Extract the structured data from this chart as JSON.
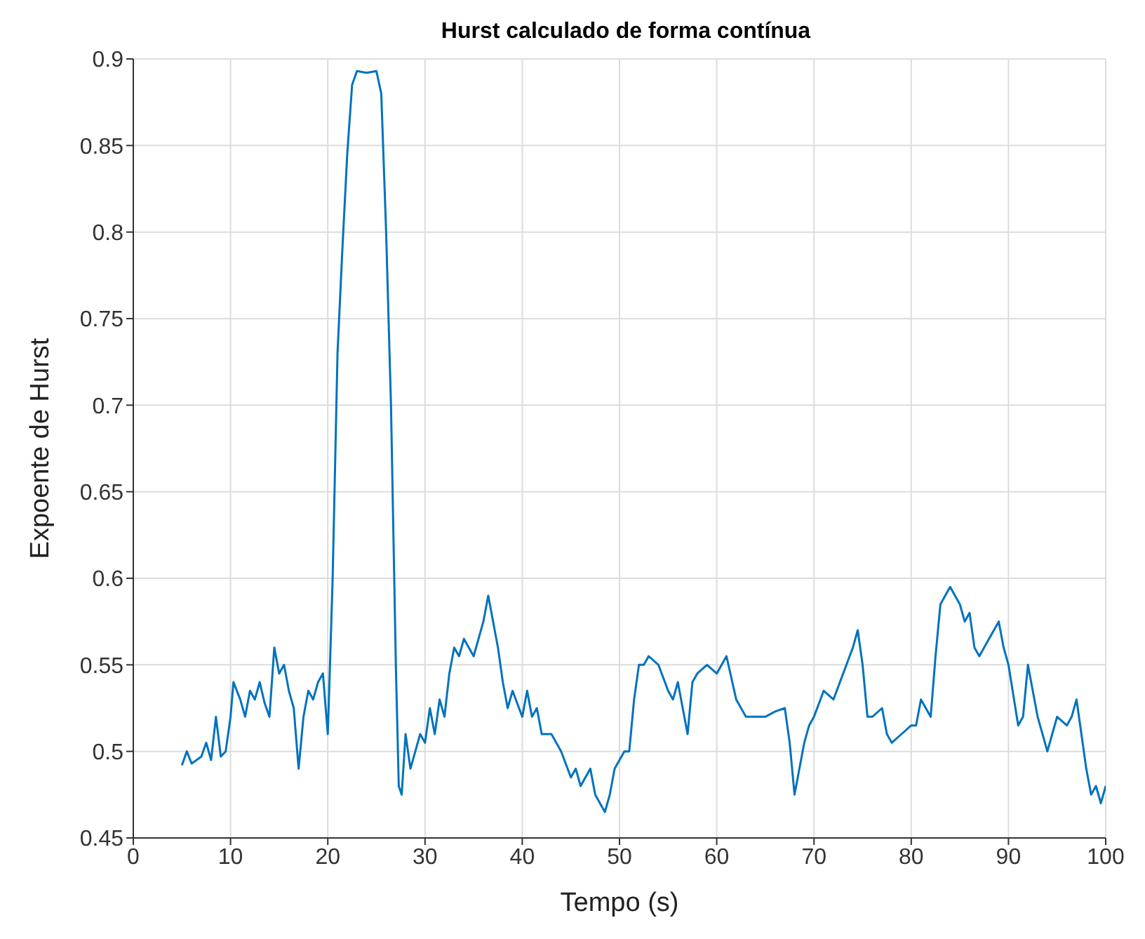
{
  "chart_data": {
    "type": "line",
    "title": "Hurst calculado de forma contínua",
    "xlabel": "Tempo (s)",
    "ylabel": "Expoente de Hurst",
    "xlim": [
      0,
      100
    ],
    "xticks": [
      0,
      10,
      20,
      30,
      40,
      50,
      60,
      70,
      80,
      90,
      100
    ],
    "ylim": [
      0.45,
      0.9
    ],
    "yticks": [
      0.45,
      0.5,
      0.55,
      0.6,
      0.65,
      0.7,
      0.75,
      0.8,
      0.85,
      0.9
    ],
    "grid": true,
    "marker": "none",
    "line_style": "solid",
    "x": [
      5,
      5.5,
      6,
      7,
      7.5,
      8,
      8.5,
      9,
      9.5,
      10,
      10.3,
      11,
      11.5,
      12,
      12.5,
      13,
      13.5,
      14,
      14.5,
      15,
      15.5,
      16,
      16.5,
      17,
      17.5,
      18,
      18.5,
      19,
      19.5,
      20,
      20.2,
      20.5,
      21,
      21.5,
      22,
      22.5,
      23,
      24,
      25,
      25.5,
      26,
      26.5,
      27,
      27.3,
      27.6,
      28,
      28.5,
      29,
      29.5,
      30,
      30.5,
      31,
      31.5,
      32,
      32.5,
      33,
      33.5,
      34,
      35,
      35.5,
      36,
      36.5,
      37,
      37.5,
      38,
      38.5,
      39,
      40,
      40.5,
      41,
      41.5,
      42,
      43,
      44,
      45,
      45.5,
      46,
      47,
      47.5,
      48,
      48.5,
      49,
      49.5,
      50,
      50.5,
      51,
      51.5,
      52,
      52.5,
      53,
      54,
      55,
      55.5,
      56,
      57,
      57.5,
      58,
      59,
      60,
      61,
      62,
      62.5,
      63,
      64,
      65,
      66,
      67,
      67.5,
      68,
      68.5,
      69,
      69.5,
      70,
      71,
      72,
      73,
      74,
      74.5,
      75,
      75.5,
      76,
      77,
      77.5,
      78,
      79,
      80,
      80.5,
      81,
      82,
      82.5,
      83,
      84,
      85,
      85.5,
      86,
      86.5,
      87,
      88,
      88.5,
      89,
      89.5,
      90,
      91,
      91.5,
      92,
      93,
      94,
      94.5,
      95,
      96,
      96.5,
      97,
      97.5,
      98,
      98.5,
      99,
      99.5,
      100
    ],
    "series": [
      {
        "color": "#0072bd",
        "values": [
          0.492,
          0.5,
          0.493,
          0.497,
          0.505,
          0.495,
          0.52,
          0.497,
          0.5,
          0.52,
          0.54,
          0.53,
          0.52,
          0.535,
          0.53,
          0.54,
          0.528,
          0.52,
          0.56,
          0.545,
          0.55,
          0.535,
          0.525,
          0.49,
          0.52,
          0.535,
          0.53,
          0.54,
          0.545,
          0.51,
          0.545,
          0.6,
          0.73,
          0.79,
          0.845,
          0.885,
          0.893,
          0.892,
          0.893,
          0.88,
          0.8,
          0.7,
          0.55,
          0.48,
          0.475,
          0.51,
          0.49,
          0.5,
          0.51,
          0.505,
          0.525,
          0.51,
          0.53,
          0.52,
          0.545,
          0.56,
          0.555,
          0.565,
          0.555,
          0.565,
          0.575,
          0.59,
          0.575,
          0.56,
          0.54,
          0.525,
          0.535,
          0.52,
          0.535,
          0.52,
          0.525,
          0.51,
          0.51,
          0.5,
          0.485,
          0.49,
          0.48,
          0.49,
          0.475,
          0.47,
          0.465,
          0.475,
          0.49,
          0.495,
          0.5,
          0.5,
          0.53,
          0.55,
          0.55,
          0.555,
          0.55,
          0.535,
          0.53,
          0.54,
          0.51,
          0.54,
          0.545,
          0.55,
          0.545,
          0.555,
          0.53,
          0.525,
          0.52,
          0.52,
          0.52,
          0.523,
          0.525,
          0.505,
          0.475,
          0.49,
          0.505,
          0.515,
          0.52,
          0.535,
          0.53,
          0.545,
          0.56,
          0.57,
          0.55,
          0.52,
          0.52,
          0.525,
          0.51,
          0.505,
          0.51,
          0.515,
          0.515,
          0.53,
          0.52,
          0.555,
          0.585,
          0.595,
          0.585,
          0.575,
          0.58,
          0.56,
          0.555,
          0.565,
          0.57,
          0.575,
          0.56,
          0.55,
          0.515,
          0.52,
          0.55,
          0.52,
          0.5,
          0.51,
          0.52,
          0.515,
          0.52,
          0.53,
          0.51,
          0.49,
          0.475,
          0.48,
          0.47,
          0.48
        ]
      }
    ]
  }
}
